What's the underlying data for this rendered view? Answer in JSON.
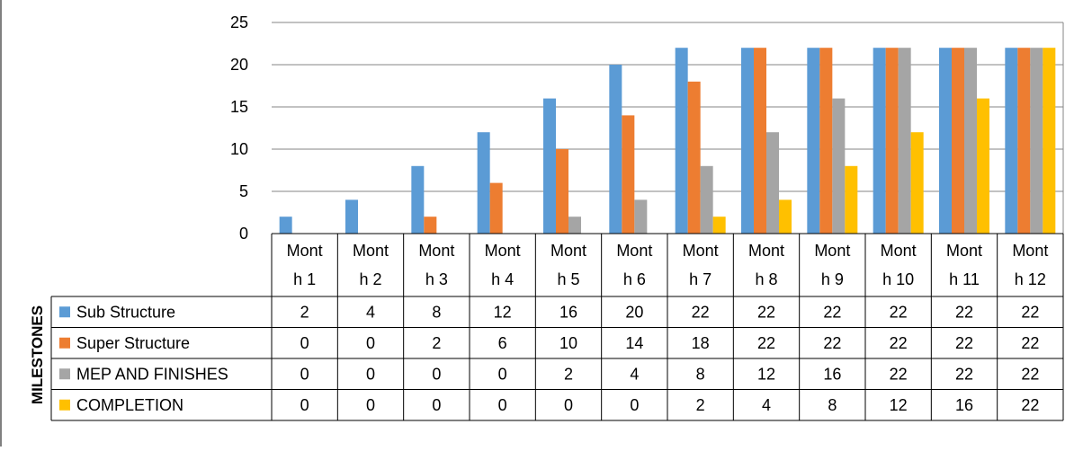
{
  "chart_data": {
    "type": "bar",
    "title": "",
    "xlabel": "",
    "ylabel": "MILESTONES",
    "ylim": [
      0,
      25
    ],
    "yticks": [
      0,
      5,
      10,
      15,
      20,
      25
    ],
    "grid": true,
    "legend": "data-table-left",
    "categories": [
      [
        "Mont",
        "h 1"
      ],
      [
        "Mont",
        "h 2"
      ],
      [
        "Mont",
        "h 3"
      ],
      [
        "Mont",
        "h 4"
      ],
      [
        "Mont",
        "h 5"
      ],
      [
        "Mont",
        "h 6"
      ],
      [
        "Mont",
        "h 7"
      ],
      [
        "Mont",
        "h 8"
      ],
      [
        "Mont",
        "h 9"
      ],
      [
        "Mont",
        "h 10"
      ],
      [
        "Mont",
        "h 11"
      ],
      [
        "Mont",
        "h 12"
      ]
    ],
    "series": [
      {
        "name": "Sub Structure",
        "color": "#5B9BD5",
        "values": [
          2,
          4,
          8,
          12,
          16,
          20,
          22,
          22,
          22,
          22,
          22,
          22
        ]
      },
      {
        "name": "Super Structure",
        "color": "#ED7D31",
        "values": [
          0,
          0,
          2,
          6,
          10,
          14,
          18,
          22,
          22,
          22,
          22,
          22
        ]
      },
      {
        "name": "MEP AND FINISHES",
        "color": "#A5A5A5",
        "values": [
          0,
          0,
          0,
          0,
          2,
          4,
          8,
          12,
          16,
          22,
          22,
          22
        ]
      },
      {
        "name": "COMPLETION",
        "color": "#FFC000",
        "values": [
          0,
          0,
          0,
          0,
          0,
          0,
          2,
          4,
          8,
          12,
          16,
          22
        ]
      }
    ]
  }
}
